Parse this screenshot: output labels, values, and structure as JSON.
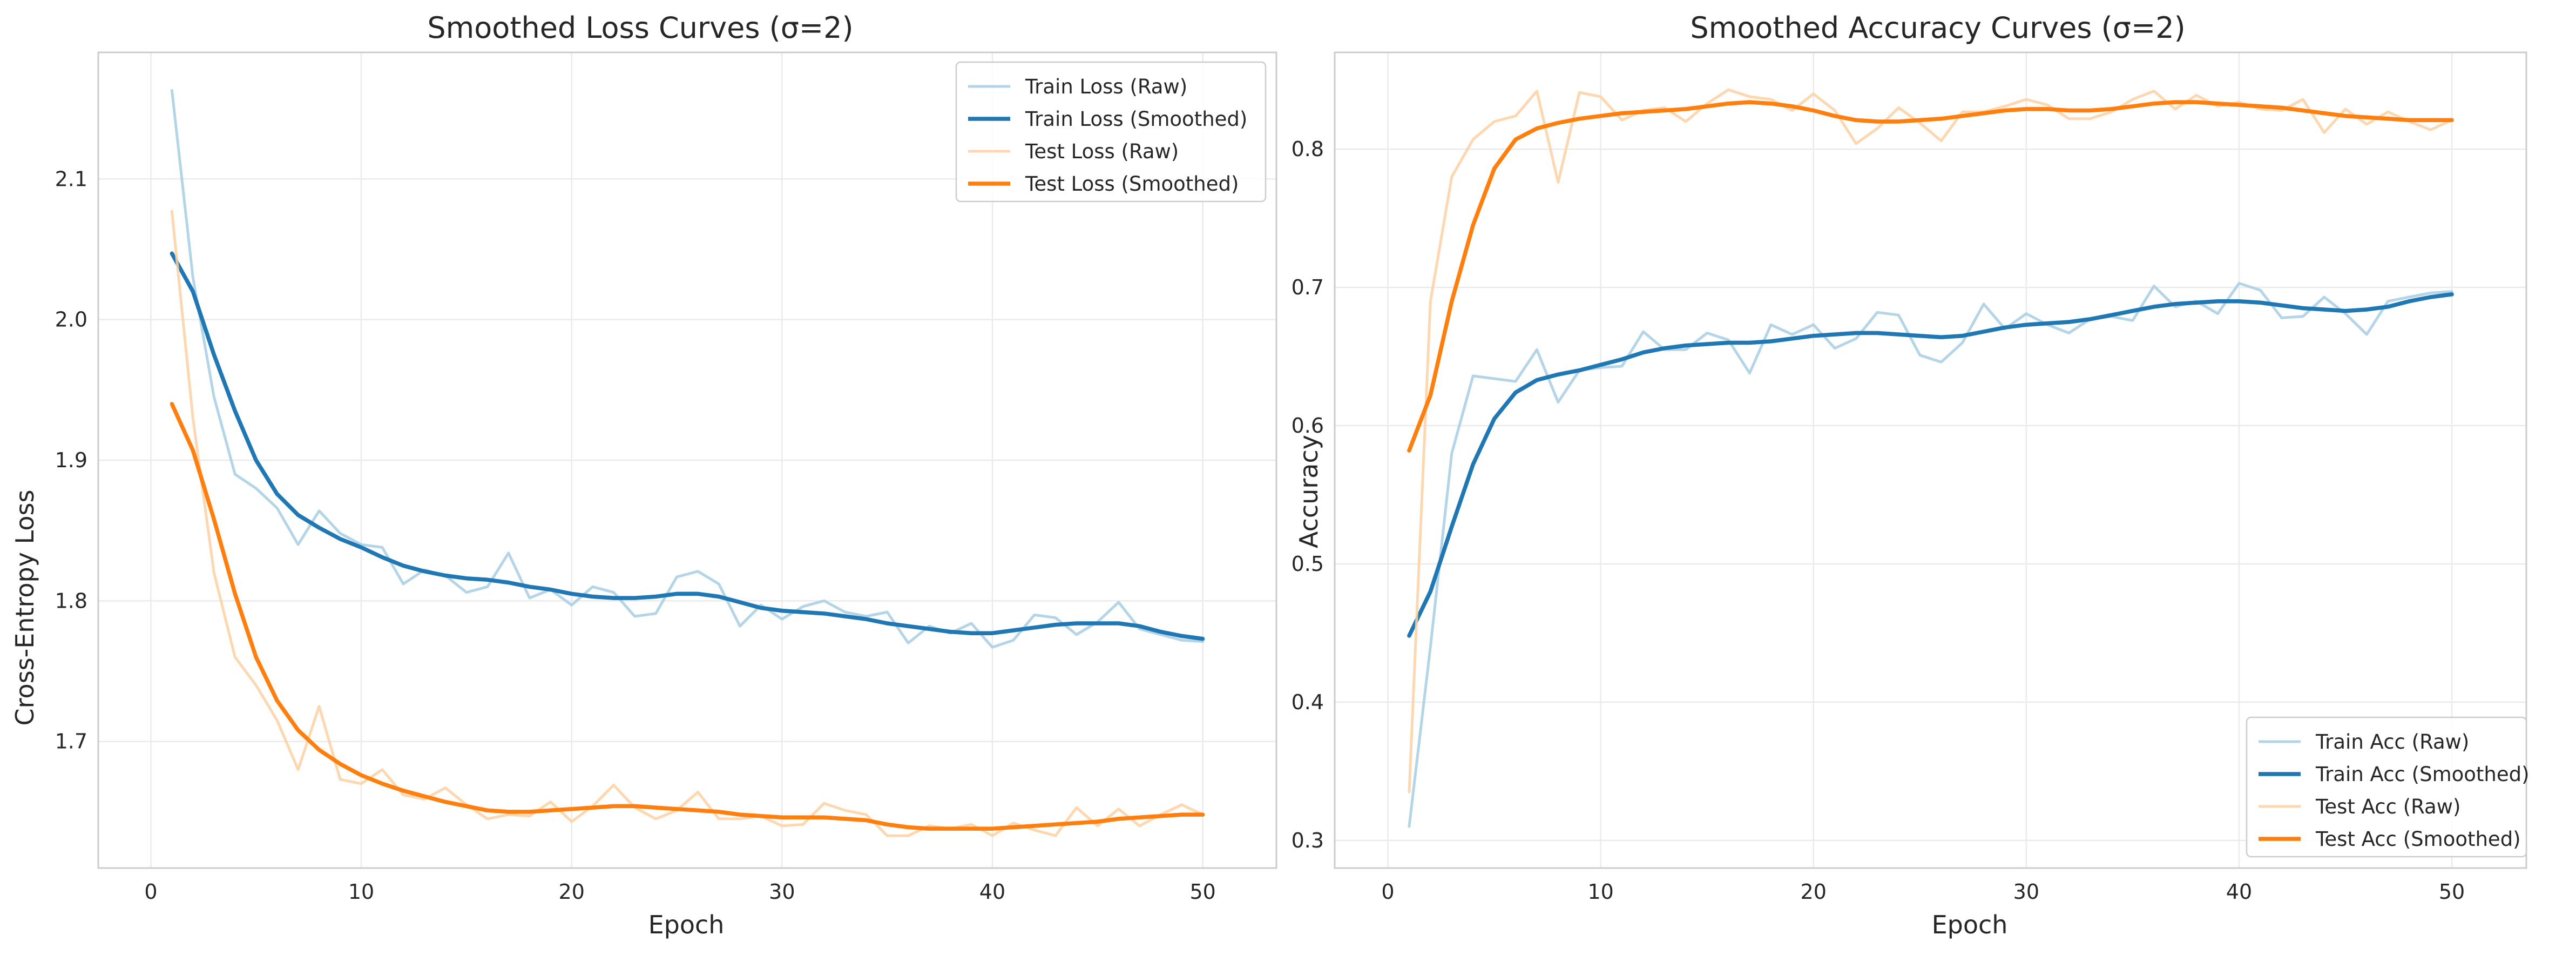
{
  "colors": {
    "train_raw": "#a6cee3",
    "train_smooth": "#1f77b4",
    "test_raw": "#fdd0a2",
    "test_smooth": "#ff7f0e"
  },
  "chart_data": [
    {
      "type": "line",
      "title": "Smoothed Loss Curves (σ=2)",
      "xlabel": "Epoch",
      "ylabel": "Cross-Entropy Loss",
      "xlim": [
        -2.5,
        53.5
      ],
      "ylim": [
        1.61,
        2.19
      ],
      "xticks": [
        0,
        10,
        20,
        30,
        40,
        50
      ],
      "yticks": [
        1.7,
        1.8,
        1.9,
        2.0,
        2.1
      ],
      "ytick_labels": [
        "1.7",
        "1.8",
        "1.9",
        "2.0",
        "2.1"
      ],
      "grid": true,
      "legend_position": "upper-right",
      "x": [
        1,
        2,
        3,
        4,
        5,
        6,
        7,
        8,
        9,
        10,
        11,
        12,
        13,
        14,
        15,
        16,
        17,
        18,
        19,
        20,
        21,
        22,
        23,
        24,
        25,
        26,
        27,
        28,
        29,
        30,
        31,
        32,
        33,
        34,
        35,
        36,
        37,
        38,
        39,
        40,
        41,
        42,
        43,
        44,
        45,
        46,
        47,
        48,
        49,
        50
      ],
      "series": [
        {
          "name": "Train Loss (Raw)",
          "color_key": "train_raw",
          "style": "raw",
          "values": [
            2.163,
            2.03,
            1.945,
            1.89,
            1.88,
            1.866,
            1.84,
            1.864,
            1.848,
            1.84,
            1.838,
            1.812,
            1.822,
            1.818,
            1.806,
            1.81,
            1.834,
            1.802,
            1.808,
            1.797,
            1.81,
            1.806,
            1.789,
            1.791,
            1.817,
            1.821,
            1.812,
            1.782,
            1.797,
            1.787,
            1.796,
            1.8,
            1.792,
            1.789,
            1.792,
            1.77,
            1.782,
            1.777,
            1.784,
            1.767,
            1.772,
            1.79,
            1.788,
            1.776,
            1.785,
            1.799,
            1.78,
            1.776,
            1.772,
            1.771
          ]
        },
        {
          "name": "Train Loss (Smoothed)",
          "color_key": "train_smooth",
          "style": "smooth",
          "values": [
            2.047,
            2.02,
            1.975,
            1.935,
            1.9,
            1.876,
            1.861,
            1.852,
            1.844,
            1.838,
            1.831,
            1.825,
            1.821,
            1.818,
            1.816,
            1.815,
            1.813,
            1.81,
            1.808,
            1.805,
            1.803,
            1.802,
            1.802,
            1.803,
            1.805,
            1.805,
            1.803,
            1.799,
            1.795,
            1.793,
            1.792,
            1.791,
            1.789,
            1.787,
            1.784,
            1.782,
            1.78,
            1.778,
            1.777,
            1.777,
            1.779,
            1.781,
            1.783,
            1.784,
            1.784,
            1.784,
            1.782,
            1.778,
            1.775,
            1.773
          ]
        },
        {
          "name": "Test Loss (Raw)",
          "color_key": "test_raw",
          "style": "raw",
          "values": [
            2.077,
            1.93,
            1.82,
            1.76,
            1.74,
            1.715,
            1.68,
            1.725,
            1.673,
            1.67,
            1.68,
            1.662,
            1.659,
            1.667,
            1.655,
            1.645,
            1.648,
            1.647,
            1.657,
            1.643,
            1.654,
            1.669,
            1.653,
            1.645,
            1.651,
            1.664,
            1.645,
            1.645,
            1.647,
            1.64,
            1.641,
            1.656,
            1.651,
            1.648,
            1.633,
            1.633,
            1.64,
            1.638,
            1.641,
            1.633,
            1.642,
            1.637,
            1.633,
            1.653,
            1.64,
            1.652,
            1.64,
            1.648,
            1.655,
            1.648
          ]
        },
        {
          "name": "Test Loss (Smoothed)",
          "color_key": "test_smooth",
          "style": "smooth",
          "values": [
            1.94,
            1.907,
            1.858,
            1.805,
            1.76,
            1.729,
            1.708,
            1.694,
            1.684,
            1.676,
            1.67,
            1.665,
            1.661,
            1.657,
            1.654,
            1.651,
            1.65,
            1.65,
            1.651,
            1.652,
            1.653,
            1.654,
            1.654,
            1.653,
            1.652,
            1.651,
            1.65,
            1.648,
            1.647,
            1.646,
            1.646,
            1.646,
            1.645,
            1.644,
            1.641,
            1.639,
            1.638,
            1.638,
            1.638,
            1.638,
            1.639,
            1.64,
            1.641,
            1.642,
            1.643,
            1.645,
            1.646,
            1.647,
            1.648,
            1.648
          ]
        }
      ]
    },
    {
      "type": "line",
      "title": "Smoothed Accuracy Curves (σ=2)",
      "xlabel": "Epoch",
      "ylabel": "Accuracy",
      "xlim": [
        -2.5,
        53.5
      ],
      "ylim": [
        0.28,
        0.87
      ],
      "xticks": [
        0,
        10,
        20,
        30,
        40,
        50
      ],
      "yticks": [
        0.3,
        0.4,
        0.5,
        0.6,
        0.7,
        0.8
      ],
      "ytick_labels": [
        "0.3",
        "0.4",
        "0.5",
        "0.6",
        "0.7",
        "0.8"
      ],
      "grid": true,
      "legend_position": "lower-right",
      "x": [
        1,
        2,
        3,
        4,
        5,
        6,
        7,
        8,
        9,
        10,
        11,
        12,
        13,
        14,
        15,
        16,
        17,
        18,
        19,
        20,
        21,
        22,
        23,
        24,
        25,
        26,
        27,
        28,
        29,
        30,
        31,
        32,
        33,
        34,
        35,
        36,
        37,
        38,
        39,
        40,
        41,
        42,
        43,
        44,
        45,
        46,
        47,
        48,
        49,
        50
      ],
      "series": [
        {
          "name": "Train Acc (Raw)",
          "color_key": "train_raw",
          "style": "raw",
          "values": [
            0.31,
            0.44,
            0.58,
            0.636,
            0.634,
            0.632,
            0.655,
            0.617,
            0.64,
            0.642,
            0.643,
            0.668,
            0.655,
            0.655,
            0.667,
            0.662,
            0.638,
            0.673,
            0.666,
            0.673,
            0.656,
            0.663,
            0.682,
            0.68,
            0.651,
            0.646,
            0.66,
            0.688,
            0.67,
            0.681,
            0.673,
            0.667,
            0.677,
            0.679,
            0.676,
            0.701,
            0.686,
            0.69,
            0.681,
            0.703,
            0.698,
            0.678,
            0.679,
            0.693,
            0.681,
            0.666,
            0.69,
            0.693,
            0.696,
            0.697
          ]
        },
        {
          "name": "Train Acc (Smoothed)",
          "color_key": "train_smooth",
          "style": "smooth",
          "values": [
            0.448,
            0.48,
            0.527,
            0.572,
            0.605,
            0.624,
            0.633,
            0.637,
            0.64,
            0.644,
            0.648,
            0.653,
            0.656,
            0.658,
            0.659,
            0.66,
            0.66,
            0.661,
            0.663,
            0.665,
            0.666,
            0.667,
            0.667,
            0.666,
            0.665,
            0.664,
            0.665,
            0.668,
            0.671,
            0.673,
            0.674,
            0.675,
            0.677,
            0.68,
            0.683,
            0.686,
            0.688,
            0.689,
            0.69,
            0.69,
            0.689,
            0.687,
            0.685,
            0.684,
            0.683,
            0.684,
            0.686,
            0.69,
            0.693,
            0.695
          ]
        },
        {
          "name": "Test Acc (Raw)",
          "color_key": "test_raw",
          "style": "raw",
          "values": [
            0.335,
            0.69,
            0.78,
            0.807,
            0.82,
            0.824,
            0.842,
            0.776,
            0.841,
            0.838,
            0.821,
            0.828,
            0.83,
            0.82,
            0.833,
            0.843,
            0.838,
            0.836,
            0.828,
            0.84,
            0.828,
            0.804,
            0.815,
            0.83,
            0.819,
            0.806,
            0.827,
            0.827,
            0.831,
            0.836,
            0.832,
            0.822,
            0.822,
            0.827,
            0.836,
            0.842,
            0.829,
            0.839,
            0.831,
            0.834,
            0.829,
            0.828,
            0.836,
            0.812,
            0.829,
            0.818,
            0.827,
            0.82,
            0.814,
            0.821
          ]
        },
        {
          "name": "Test Acc (Smoothed)",
          "color_key": "test_smooth",
          "style": "smooth",
          "values": [
            0.582,
            0.622,
            0.69,
            0.745,
            0.786,
            0.807,
            0.815,
            0.819,
            0.822,
            0.824,
            0.826,
            0.827,
            0.828,
            0.829,
            0.831,
            0.833,
            0.834,
            0.833,
            0.831,
            0.828,
            0.824,
            0.821,
            0.82,
            0.82,
            0.821,
            0.822,
            0.824,
            0.826,
            0.828,
            0.829,
            0.829,
            0.828,
            0.828,
            0.829,
            0.831,
            0.833,
            0.834,
            0.834,
            0.833,
            0.832,
            0.831,
            0.83,
            0.828,
            0.826,
            0.824,
            0.823,
            0.822,
            0.821,
            0.821,
            0.821
          ]
        }
      ]
    }
  ]
}
